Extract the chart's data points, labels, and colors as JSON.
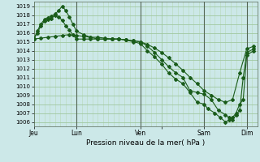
{
  "xlabel": "Pression niveau de la mer( hPa )",
  "bg_color": "#cce8e8",
  "grid_color_minor": "#b8d8b8",
  "grid_color_major": "#a0c8a0",
  "line_color": "#1a5c1a",
  "ylim": [
    1005.5,
    1019.5
  ],
  "yticks": [
    1006,
    1007,
    1008,
    1009,
    1010,
    1011,
    1012,
    1013,
    1014,
    1015,
    1016,
    1017,
    1018,
    1019
  ],
  "xlim": [
    0,
    252
  ],
  "vline_positions": [
    48,
    120,
    192,
    240
  ],
  "day_ticks": [
    0,
    48,
    120,
    144,
    192,
    240
  ],
  "day_labels": [
    "Jeu",
    "Lun",
    "Ven",
    "",
    "Sam",
    "Dim"
  ],
  "series1_x": [
    0,
    8,
    16,
    24,
    32,
    40,
    48,
    56,
    64,
    72,
    80,
    88,
    96,
    104,
    112,
    120,
    128,
    136,
    144,
    152,
    160,
    168,
    176,
    184,
    192,
    200,
    208,
    216,
    224,
    232,
    240,
    248
  ],
  "series1_y": [
    1015.3,
    1015.4,
    1015.5,
    1015.6,
    1015.7,
    1015.8,
    1015.7,
    1015.6,
    1015.5,
    1015.5,
    1015.4,
    1015.3,
    1015.3,
    1015.2,
    1015.1,
    1015.0,
    1014.7,
    1014.3,
    1013.8,
    1013.2,
    1012.5,
    1011.8,
    1011.0,
    1010.3,
    1009.5,
    1009.0,
    1008.5,
    1008.2,
    1008.5,
    1011.5,
    1014.2,
    1014.5
  ],
  "series2_x": [
    0,
    4,
    8,
    12,
    16,
    20,
    24,
    28,
    32,
    36,
    40,
    44,
    48,
    56,
    64,
    72,
    80,
    88,
    96,
    104,
    112,
    120,
    128,
    136,
    144,
    152,
    160,
    168,
    176,
    184,
    192,
    200,
    208,
    216,
    220,
    224,
    228,
    232,
    236,
    240,
    248
  ],
  "series2_y": [
    1015.3,
    1016.0,
    1016.8,
    1017.3,
    1017.5,
    1017.6,
    1018.0,
    1017.8,
    1017.4,
    1016.8,
    1016.3,
    1015.8,
    1015.3,
    1015.3,
    1015.3,
    1015.3,
    1015.3,
    1015.3,
    1015.3,
    1015.2,
    1015.1,
    1015.0,
    1014.5,
    1013.8,
    1013.0,
    1012.2,
    1011.5,
    1011.0,
    1009.5,
    1009.3,
    1009.1,
    1008.5,
    1007.3,
    1006.8,
    1006.5,
    1006.2,
    1006.8,
    1007.3,
    1011.0,
    1013.8,
    1014.2
  ],
  "series3_x": [
    0,
    4,
    8,
    12,
    16,
    20,
    24,
    28,
    32,
    36,
    40,
    44,
    48,
    56,
    64,
    72,
    80,
    88,
    96,
    104,
    112,
    120,
    128,
    136,
    144,
    152,
    160,
    168,
    176,
    184,
    192,
    196,
    204,
    210,
    216,
    220,
    224,
    228,
    232,
    236,
    240,
    248
  ],
  "series3_y": [
    1015.3,
    1016.2,
    1017.0,
    1017.5,
    1017.7,
    1017.9,
    1018.1,
    1018.5,
    1019.0,
    1018.5,
    1017.8,
    1017.0,
    1016.2,
    1015.8,
    1015.5,
    1015.3,
    1015.3,
    1015.3,
    1015.3,
    1015.2,
    1015.0,
    1014.8,
    1014.0,
    1013.3,
    1012.5,
    1011.5,
    1010.8,
    1010.3,
    1009.3,
    1008.2,
    1008.0,
    1007.5,
    1007.0,
    1006.5,
    1006.0,
    1006.2,
    1006.5,
    1007.0,
    1008.0,
    1008.5,
    1013.5,
    1014.0
  ]
}
